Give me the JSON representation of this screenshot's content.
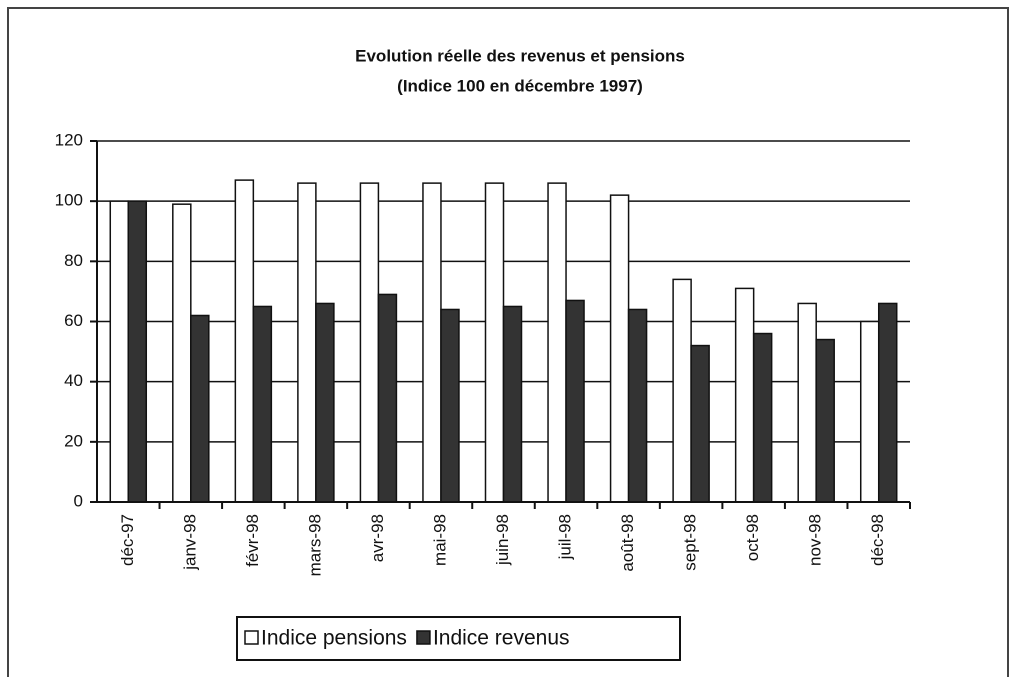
{
  "chart_data": {
    "type": "bar",
    "title": "Evolution réelle des revenus et pensions",
    "subtitle": "(Indice 100 en décembre 1997)",
    "categories": [
      "déc-97",
      "janv-98",
      "févr-98",
      "mars-98",
      "avr-98",
      "mai-98",
      "juin-98",
      "juil-98",
      "août-98",
      "sept-98",
      "oct-98",
      "nov-98",
      "déc-98"
    ],
    "series": [
      {
        "name": "Indice pensions",
        "color": "#ffffff",
        "values": [
          100,
          99,
          107,
          106,
          106,
          106,
          106,
          106,
          102,
          74,
          71,
          66,
          60
        ]
      },
      {
        "name": "Indice revenus",
        "color": "#333333",
        "values": [
          100,
          62,
          65,
          66,
          69,
          64,
          65,
          67,
          64,
          52,
          56,
          54,
          66
        ]
      }
    ],
    "ylim": [
      0,
      120
    ],
    "yticks": [
      0,
      20,
      40,
      60,
      80,
      100,
      120
    ],
    "grid": true,
    "legend": "bottom"
  }
}
